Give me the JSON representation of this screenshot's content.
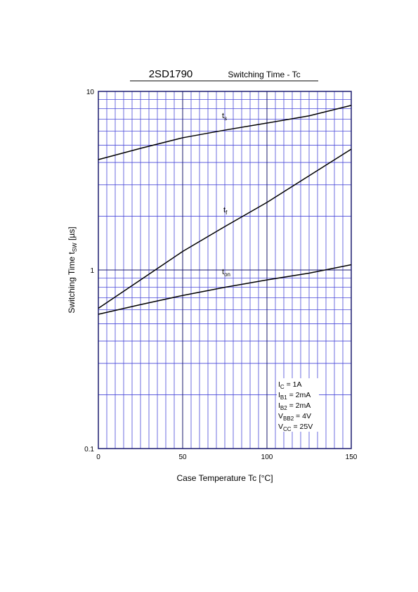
{
  "chart_data": {
    "type": "line",
    "title": "2SD1790",
    "subtitle": "Switching Time - Tc",
    "xlabel": "Case Temperature  Tc  [°C]",
    "ylabel": {
      "text": "Switching Time  t",
      "sub": "SW",
      "rest": "  [µs]"
    },
    "log_y": true,
    "grid": true,
    "color": "#000000",
    "x": [
      0,
      25,
      50,
      75,
      100,
      125,
      150
    ],
    "series": [
      {
        "name": {
          "text": "t",
          "sub": "s"
        },
        "color": "#000000",
        "values": [
          4.15,
          4.8,
          5.5,
          6.07,
          6.65,
          7.3,
          8.35
        ]
      },
      {
        "name": {
          "text": "t",
          "sub": "f"
        },
        "color": "#000000",
        "values": [
          0.61,
          0.88,
          1.27,
          1.75,
          2.39,
          3.37,
          4.75
        ]
      },
      {
        "name": {
          "text": "t",
          "sub": "on"
        },
        "color": "#000000",
        "values": [
          0.565,
          0.64,
          0.72,
          0.8,
          0.88,
          0.96,
          1.07
        ]
      }
    ],
    "xlim": [
      0,
      150
    ],
    "ylim": [
      0.1,
      10
    ],
    "xticks": [
      0,
      50,
      100,
      150
    ],
    "yticks": [
      0.1,
      1,
      10
    ],
    "minor_xticks": [
      5,
      10,
      15,
      20,
      25,
      30,
      35,
      40,
      45,
      55,
      60,
      65,
      70,
      75,
      80,
      85,
      90,
      95,
      105,
      110,
      115,
      120,
      125,
      130,
      135,
      140,
      145
    ],
    "minor_yticks": [
      0.2,
      0.3,
      0.4,
      0.5,
      0.6,
      0.7,
      0.8,
      0.9,
      2,
      3,
      4,
      5,
      6,
      7,
      8,
      9
    ],
    "conditions": [
      {
        "text": "I",
        "sub": "C",
        "rest": " = 1A"
      },
      {
        "text": "I",
        "sub": "B1",
        "rest": " = 2mA"
      },
      {
        "text": "I",
        "sub": "B2",
        "rest": " = 2mA"
      },
      {
        "text": "V",
        "sub": "BB2",
        "rest": " = 4V"
      },
      {
        "text": "V",
        "sub": "CC",
        "rest": " = 25V"
      }
    ]
  }
}
